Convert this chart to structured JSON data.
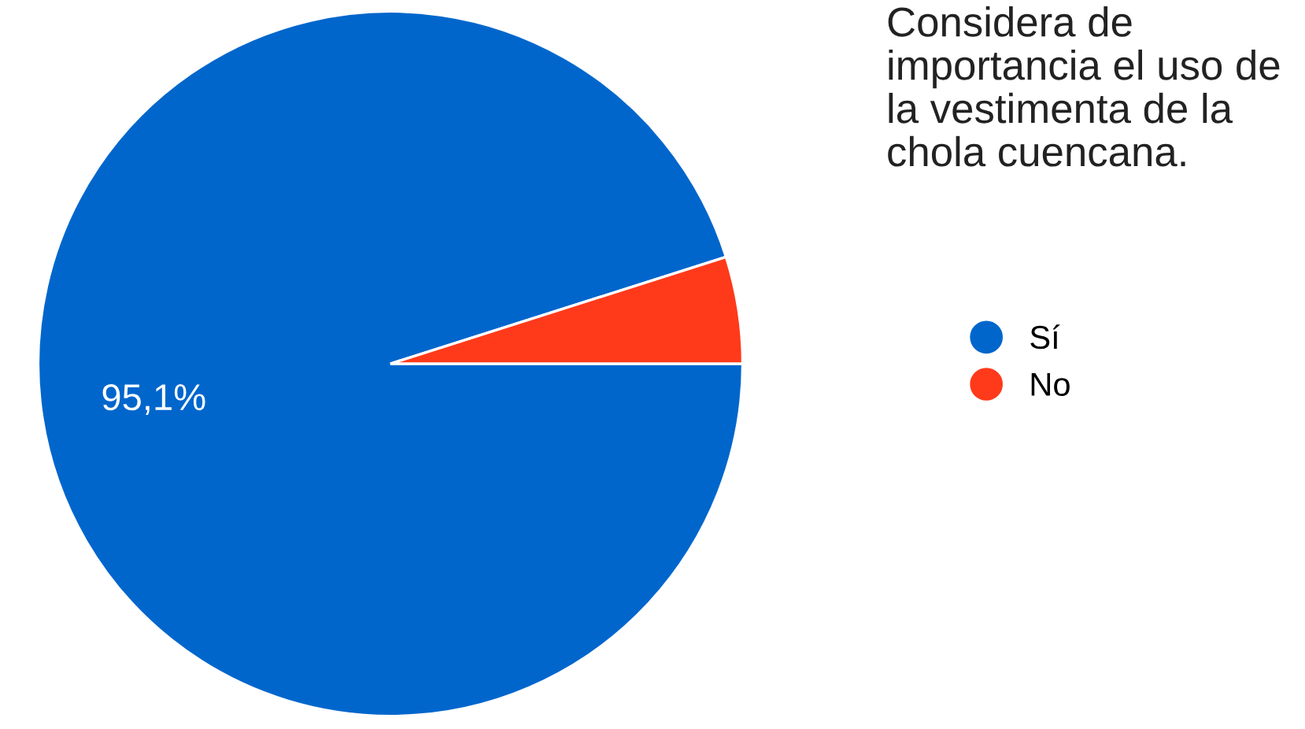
{
  "chart_data": {
    "type": "pie",
    "title": "Considera de importancia el uso de la vestimenta de la chola cuencana.",
    "categories": [
      "Sí",
      "No"
    ],
    "values": [
      95.1,
      4.9
    ],
    "colors": [
      "#0066cc",
      "#ff3a1a"
    ],
    "value_labels": [
      "95,1%",
      null
    ],
    "legend": "right"
  }
}
